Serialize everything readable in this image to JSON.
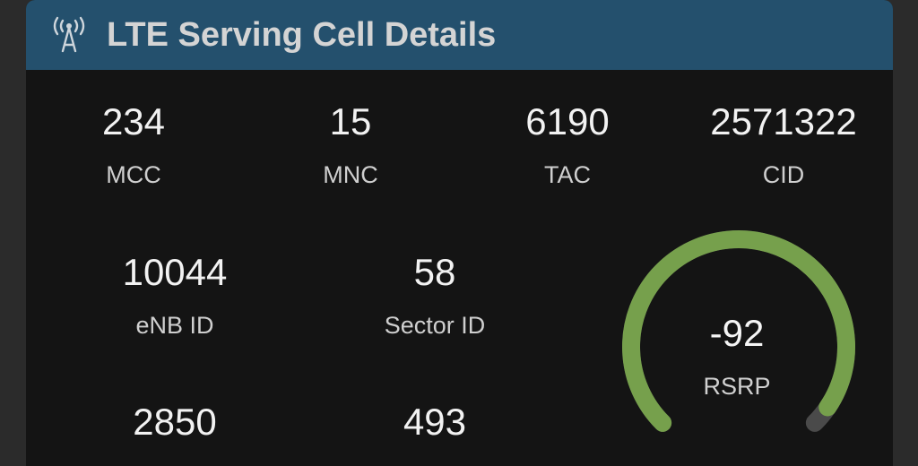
{
  "header": {
    "title": "LTE Serving Cell Details",
    "icon": "antenna-icon"
  },
  "fields": [
    {
      "value": "234",
      "label": "MCC"
    },
    {
      "value": "15",
      "label": "MNC"
    },
    {
      "value": "6190",
      "label": "TAC"
    },
    {
      "value": "2571322",
      "label": "CID"
    },
    {
      "value": "10044",
      "label": "eNB ID"
    },
    {
      "value": "58",
      "label": "Sector ID"
    },
    {
      "value": "2850",
      "label": ""
    },
    {
      "value": "493",
      "label": ""
    }
  ],
  "gauge": {
    "value": "-92",
    "label": "RSRP",
    "fill_fraction": 0.96,
    "fill_color": "#76a04c",
    "track_color": "#4a4a4a"
  },
  "colors": {
    "header": "#24506d",
    "body": "#141414"
  }
}
